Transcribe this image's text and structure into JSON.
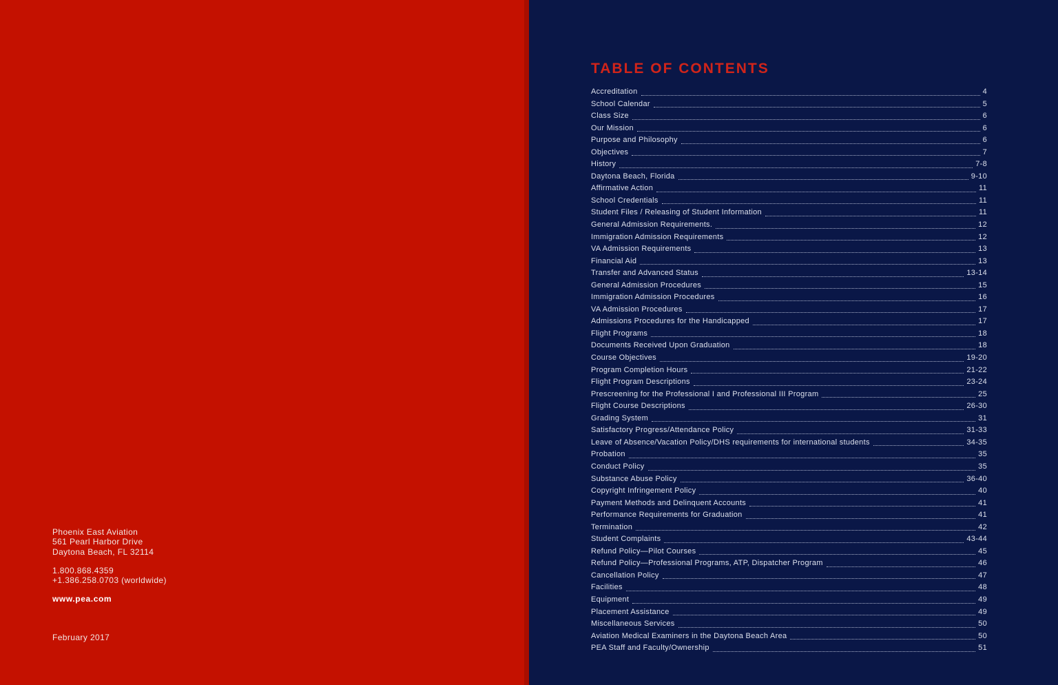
{
  "colors": {
    "left_background_red": "#C41100",
    "right_background_navy": "#0A1747",
    "title_red": "#D0241A",
    "toc_text": "#DCE0EC",
    "left_text": "#F3E8E5"
  },
  "left_page": {
    "company": "Phoenix East Aviation",
    "address": [
      "561 Pearl Harbor Drive",
      "Daytona Beach, FL 32114"
    ],
    "phones": [
      "1.800.868.4359",
      "+1.386.258.0703 (worldwide)"
    ],
    "website": "www.pea.com",
    "date": "February 2017"
  },
  "right_page": {
    "title": "TABLE OF CONTENTS",
    "entries": [
      {
        "label": "Accreditation",
        "page": "4"
      },
      {
        "label": "School Calendar",
        "page": "5"
      },
      {
        "label": "Class Size",
        "page": "6"
      },
      {
        "label": "Our Mission",
        "page": "6"
      },
      {
        "label": "Purpose and Philosophy",
        "page": "6"
      },
      {
        "label": "Objectives",
        "page": "7"
      },
      {
        "label": "History",
        "page": "7-8"
      },
      {
        "label": "Daytona Beach, Florida",
        "page": "9-10"
      },
      {
        "label": "Affirmative Action",
        "page": "11"
      },
      {
        "label": "School Credentials",
        "page": "11"
      },
      {
        "label": "Student Files / Releasing of Student Information",
        "page": "11"
      },
      {
        "label": "General Admission Requirements.",
        "page": "12"
      },
      {
        "label": "Immigration Admission Requirements",
        "page": "12"
      },
      {
        "label": "VA Admission Requirements",
        "page": "13"
      },
      {
        "label": "Financial Aid",
        "page": "13"
      },
      {
        "label": "Transfer and Advanced Status",
        "page": "13-14"
      },
      {
        "label": "General Admission Procedures",
        "page": "15"
      },
      {
        "label": "Immigration Admission Procedures",
        "page": "16"
      },
      {
        "label": "VA Admission Procedures",
        "page": "17"
      },
      {
        "label": "Admissions Procedures for the Handicapped",
        "page": "17"
      },
      {
        "label": "Flight Programs",
        "page": "18"
      },
      {
        "label": "Documents Received Upon Graduation",
        "page": "18"
      },
      {
        "label": "Course Objectives",
        "page": "19-20"
      },
      {
        "label": "Program Completion Hours",
        "page": "21-22"
      },
      {
        "label": "Flight Program Descriptions",
        "page": "23-24"
      },
      {
        "label": "Prescreening for the Professional I and Professional III Program",
        "page": "25"
      },
      {
        "label": "Flight Course Descriptions",
        "page": "26-30"
      },
      {
        "label": "Grading System",
        "page": "31"
      },
      {
        "label": "Satisfactory Progress/Attendance Policy",
        "page": "31-33"
      },
      {
        "label": "Leave of Absence/Vacation Policy/DHS requirements for international students",
        "page": "34-35"
      },
      {
        "label": "Probation",
        "page": "35"
      },
      {
        "label": "Conduct Policy",
        "page": "35"
      },
      {
        "label": "Substance Abuse Policy",
        "page": "36-40"
      },
      {
        "label": "Copyright Infringement Policy",
        "page": "40"
      },
      {
        "label": "Payment Methods and Delinquent Accounts",
        "page": "41"
      },
      {
        "label": "Performance Requirements for Graduation",
        "page": "41"
      },
      {
        "label": "Termination",
        "page": "42"
      },
      {
        "label": "Student Complaints",
        "page": "43-44"
      },
      {
        "label": "Refund Policy—Pilot Courses",
        "page": "45"
      },
      {
        "label": "Refund Policy—Professional Programs, ATP, Dispatcher Program",
        "page": "46"
      },
      {
        "label": "Cancellation Policy",
        "page": "47"
      },
      {
        "label": "Facilities",
        "page": "48"
      },
      {
        "label": "Equipment",
        "page": "49"
      },
      {
        "label": "Placement Assistance",
        "page": "49"
      },
      {
        "label": "Miscellaneous Services",
        "page": "50"
      },
      {
        "label": "Aviation Medical Examiners in the Daytona Beach Area",
        "page": "50"
      },
      {
        "label": "PEA Staff and Faculty/Ownership",
        "page": "51"
      }
    ]
  }
}
